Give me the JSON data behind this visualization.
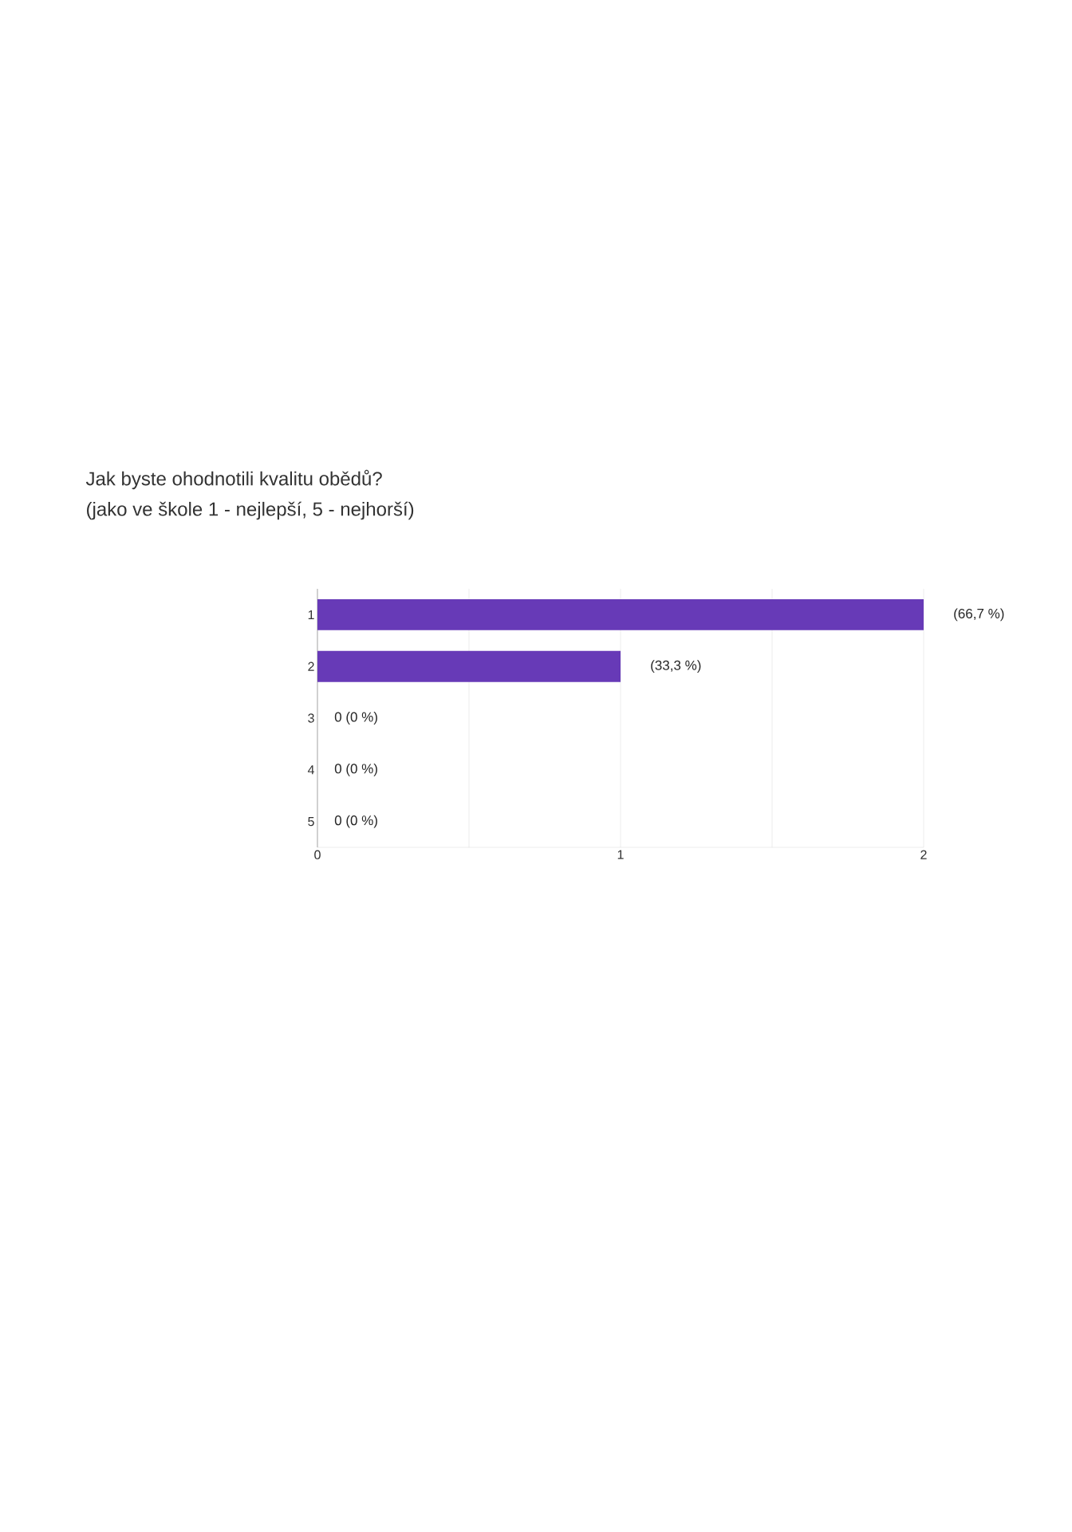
{
  "chart_data": {
    "type": "bar",
    "orientation": "horizontal",
    "title": "Jak byste ohodnotili kvalitu obědů?",
    "subtitle": "(jako ve škole 1 - nejlepší, 5 - nejhorší)",
    "categories": [
      "1",
      "2",
      "3",
      "4",
      "5"
    ],
    "values": [
      2,
      1,
      0,
      0,
      0
    ],
    "color": "#673ab7",
    "annotations": [
      {
        "text": "(66,7 %)",
        "x": 2,
        "y": "1"
      },
      {
        "text": "(33,3 %)",
        "x": 1,
        "y": "2"
      },
      {
        "text": "0 (0 %)",
        "x": 0,
        "y": "3"
      },
      {
        "text": "0 (0 %)",
        "x": 0,
        "y": "4"
      },
      {
        "text": "0 (0 %)",
        "x": 0,
        "y": "5"
      }
    ],
    "xlim": [
      0,
      2
    ],
    "xticks": [
      0,
      {
        "value": 0.5,
        "label": null
      },
      1,
      {
        "value": 1.5,
        "label": null
      },
      2
    ],
    "grid": "x"
  }
}
